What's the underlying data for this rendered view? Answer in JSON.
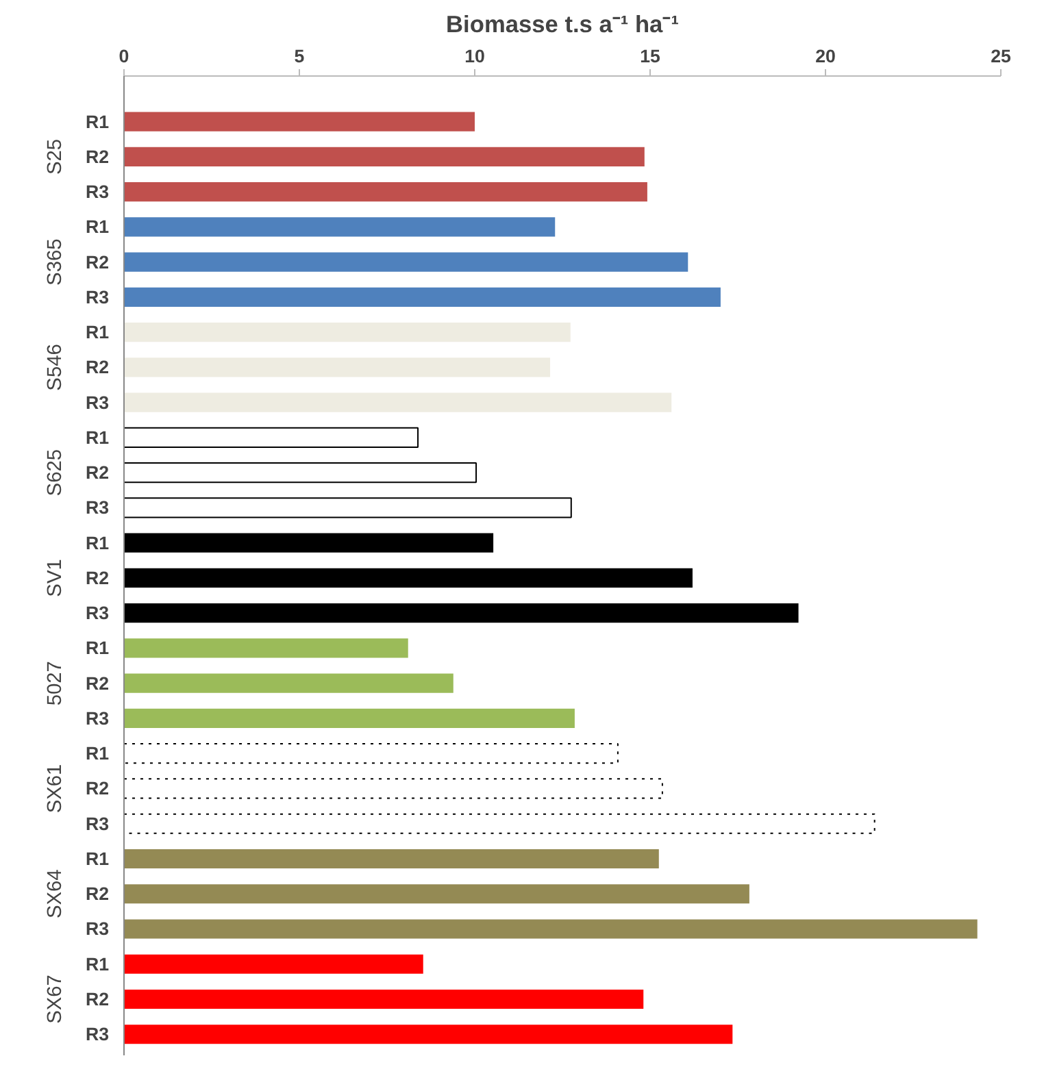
{
  "chart_data": {
    "type": "bar",
    "orientation": "horizontal",
    "title": "Biomasse t.s a⁻¹ ha⁻¹",
    "categories": [
      "R1",
      "R2",
      "R3",
      "R1",
      "R2",
      "R3",
      "R1",
      "R2",
      "R3",
      "R1",
      "R2",
      "R3",
      "R1",
      "R2",
      "R3",
      "R1",
      "R2",
      "R3",
      "R1",
      "R2",
      "R3",
      "R1",
      "R2",
      "R3",
      "R1",
      "R2",
      "R3"
    ],
    "series": [
      {
        "name": "S25",
        "color": "#c0504d",
        "values": [
          10.0,
          14.84,
          14.92,
          null,
          null,
          null,
          null,
          null,
          null,
          null,
          null,
          null,
          null,
          null,
          null,
          null,
          null,
          null,
          null,
          null,
          null,
          null,
          null,
          null,
          null,
          null,
          null
        ]
      },
      {
        "name": "S365",
        "color": "#4f81bd",
        "values": [
          null,
          null,
          null,
          12.29,
          16.08,
          17.01,
          null,
          null,
          null,
          null,
          null,
          null,
          null,
          null,
          null,
          null,
          null,
          null,
          null,
          null,
          null,
          null,
          null,
          null,
          null,
          null,
          null
        ]
      },
      {
        "name": "S546",
        "color": "#eeece1",
        "values": [
          null,
          null,
          null,
          null,
          null,
          null,
          12.73,
          12.15,
          15.61,
          null,
          null,
          null,
          null,
          null,
          null,
          null,
          null,
          null,
          null,
          null,
          null,
          null,
          null,
          null,
          null,
          null,
          null
        ]
      },
      {
        "name": "S625",
        "color": "#ffffff",
        "line_style": "solid",
        "values": [
          null,
          null,
          null,
          null,
          null,
          null,
          null,
          null,
          null,
          8.38,
          10.04,
          12.75,
          null,
          null,
          null,
          null,
          null,
          null,
          null,
          null,
          null,
          null,
          null,
          null,
          null,
          null,
          null
        ]
      },
      {
        "name": "SV1",
        "color": "#000000",
        "values": [
          null,
          null,
          null,
          null,
          null,
          null,
          null,
          null,
          null,
          null,
          null,
          null,
          10.53,
          16.21,
          19.23,
          null,
          null,
          null,
          null,
          null,
          null,
          null,
          null,
          null,
          null,
          null,
          null
        ]
      },
      {
        "name": "5027",
        "color": "#9bbb59",
        "values": [
          null,
          null,
          null,
          null,
          null,
          null,
          null,
          null,
          null,
          null,
          null,
          null,
          null,
          null,
          null,
          8.1,
          9.39,
          12.85,
          null,
          null,
          null,
          null,
          null,
          null,
          null,
          null,
          null
        ]
      },
      {
        "name": "SX61",
        "color": "#ffffff",
        "line_style": "dotted",
        "values": [
          null,
          null,
          null,
          null,
          null,
          null,
          null,
          null,
          null,
          null,
          null,
          null,
          null,
          null,
          null,
          null,
          null,
          null,
          14.08,
          15.35,
          21.4,
          null,
          null,
          null,
          null,
          null,
          null
        ]
      },
      {
        "name": "SX64",
        "color": "#948a54",
        "values": [
          null,
          null,
          null,
          null,
          null,
          null,
          null,
          null,
          null,
          null,
          null,
          null,
          null,
          null,
          null,
          null,
          null,
          null,
          null,
          null,
          null,
          15.25,
          17.83,
          24.33,
          null,
          null,
          null
        ]
      },
      {
        "name": "SX67",
        "color": "#ff0000",
        "values": [
          null,
          null,
          null,
          null,
          null,
          null,
          null,
          null,
          null,
          null,
          null,
          null,
          null,
          null,
          null,
          null,
          null,
          null,
          null,
          null,
          null,
          null,
          null,
          null,
          8.53,
          14.81,
          17.35
        ]
      }
    ],
    "xlim": [
      0,
      25
    ],
    "xticks": [
      0,
      5,
      10,
      15,
      20,
      25
    ],
    "grid": false
  }
}
